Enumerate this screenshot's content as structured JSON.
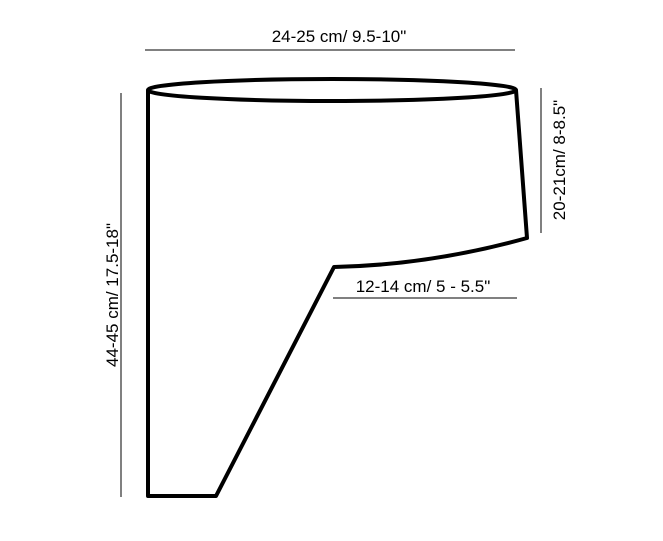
{
  "labels": {
    "top_width": "24-25 cm/ 9.5-10\"",
    "left_height": "44-45 cm/ 17.5-18\"",
    "right_height": "20-21cm/ 8-8.5\"",
    "inner_width": "12-14 cm/ 5 - 5.5\""
  },
  "colors": {
    "line": "#000000",
    "background": "#ffffff"
  }
}
